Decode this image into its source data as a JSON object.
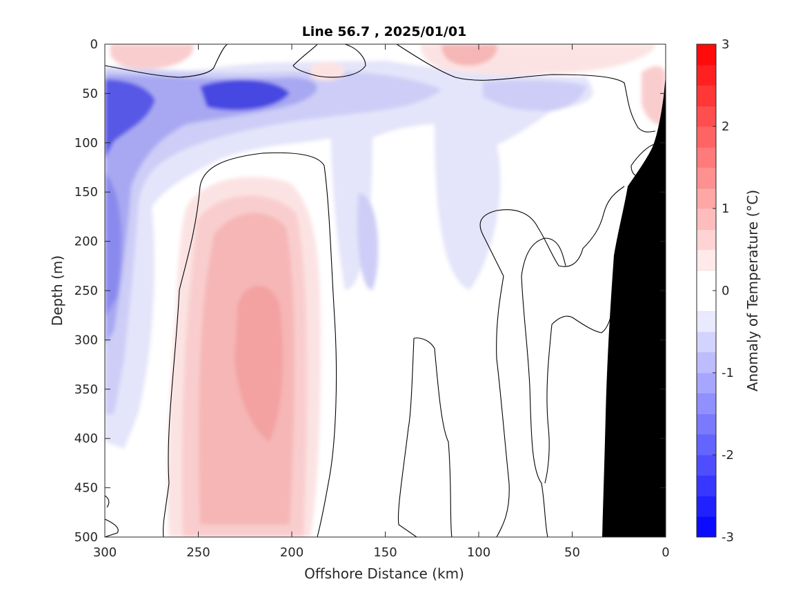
{
  "chart_data": {
    "type": "heatmap",
    "title": "Line 56.7 , 2025/01/01",
    "xlabel": "Offshore Distance (km)",
    "ylabel": "Depth (m)",
    "colorbar_label": "Anomaly of Temperature (°C)",
    "x_ticks": [
      "300",
      "250",
      "200",
      "150",
      "100",
      "50",
      "0"
    ],
    "y_ticks": [
      "0",
      "50",
      "100",
      "150",
      "200",
      "250",
      "300",
      "350",
      "400",
      "450",
      "500"
    ],
    "colorbar_ticks": [
      "3",
      "2",
      "1",
      "0",
      "-1",
      "-2",
      "-3"
    ],
    "xlim": [
      300,
      0
    ],
    "ylim": [
      0,
      500
    ],
    "clim": [
      -3,
      3
    ],
    "contour_interval": 0.25,
    "colormap": "blue-white-red",
    "colors": {
      "positive": "#ff0000",
      "negative": "#0000ff",
      "neutral": "#ffffff",
      "bathymetry": "#000000"
    },
    "features": [
      {
        "name": "subsurface warm core",
        "x_km": 220,
        "depth_m": 320,
        "anomaly": 1.0
      },
      {
        "name": "near-surface cold band",
        "x_km": 220,
        "depth_m": 50,
        "anomaly": -2.0
      },
      {
        "name": "near-surface cold band west",
        "x_km": 295,
        "depth_m": 55,
        "anomaly": -2.0
      },
      {
        "name": "deep offshore cold",
        "x_km": 300,
        "depth_m": 230,
        "anomaly": -1.25
      },
      {
        "name": "surface warm patch",
        "x_km": 105,
        "depth_m": 10,
        "anomaly": 0.6
      },
      {
        "name": "surface warm patch west",
        "x_km": 280,
        "depth_m": 5,
        "anomaly": 0.6
      },
      {
        "name": "nearshore cold tongue",
        "x_km": 155,
        "depth_m": 220,
        "anomaly": -0.5
      }
    ],
    "bathymetry_km_at_depth": [
      [
        0,
        35
      ],
      [
        10,
        100
      ],
      [
        20,
        150
      ],
      [
        25,
        200
      ],
      [
        30,
        340
      ],
      [
        33,
        500
      ]
    ]
  }
}
